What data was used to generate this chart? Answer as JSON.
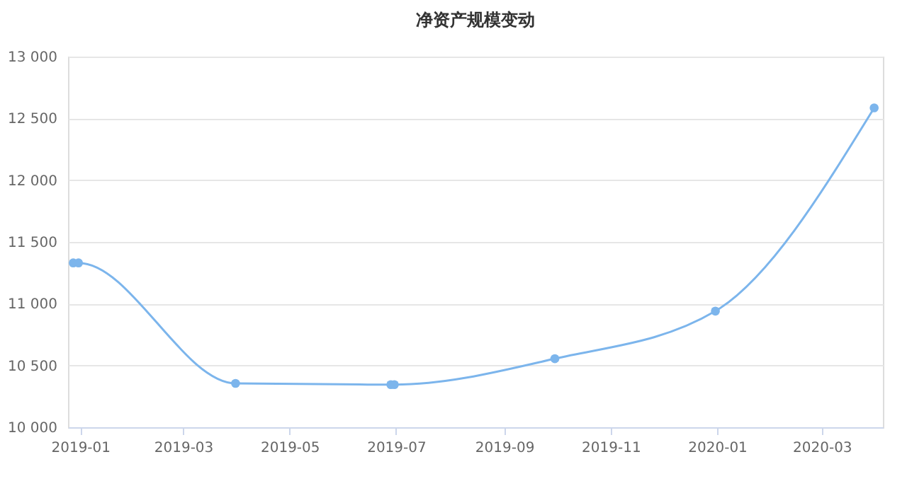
{
  "chart_data": {
    "type": "line",
    "title": "净资产规模变动",
    "x": [
      "2018-12-28",
      "2018-12-31",
      "2019-03-31",
      "2019-06-28",
      "2019-06-30",
      "2019-09-30",
      "2019-12-31",
      "2020-03-31"
    ],
    "series": [
      {
        "color": "#7cb5ec",
        "values": [
          11330,
          11330,
          10355,
          10345,
          10345,
          10555,
          10940,
          12585
        ]
      }
    ],
    "xlim": [
      "2018-12-25",
      "2020-04-05"
    ],
    "xticks": [
      {
        "value": "2019-01-01",
        "label": "2019-01"
      },
      {
        "value": "2019-03-01",
        "label": "2019-03"
      },
      {
        "value": "2019-05-01",
        "label": "2019-05"
      },
      {
        "value": "2019-07-01",
        "label": "2019-07"
      },
      {
        "value": "2019-09-01",
        "label": "2019-09"
      },
      {
        "value": "2019-11-01",
        "label": "2019-11"
      },
      {
        "value": "2020-01-01",
        "label": "2020-01"
      },
      {
        "value": "2020-03-01",
        "label": "2020-03"
      }
    ],
    "ylim": [
      10000,
      13000
    ],
    "yticks": [
      {
        "value": 10000,
        "label": "10 000"
      },
      {
        "value": 10500,
        "label": "10 500"
      },
      {
        "value": 11000,
        "label": "11 000"
      },
      {
        "value": 11500,
        "label": "11 500"
      },
      {
        "value": 12000,
        "label": "12 000"
      },
      {
        "value": 12500,
        "label": "12 500"
      },
      {
        "value": 13000,
        "label": "13 000"
      }
    ],
    "grid": "y",
    "marker": "circle",
    "line_style": "solid",
    "legend": false
  }
}
